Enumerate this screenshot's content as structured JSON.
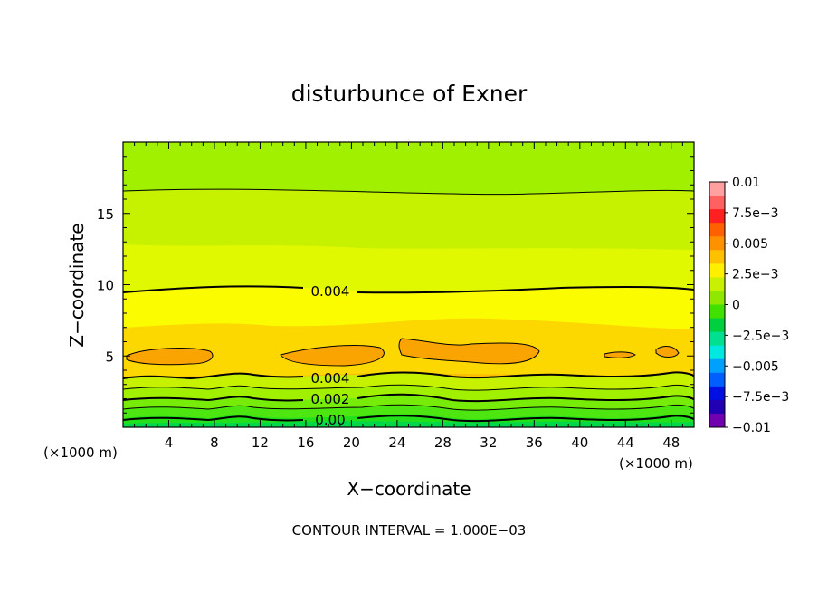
{
  "chart_data": {
    "type": "contour",
    "title": "disturbunce of Exner",
    "xlabel": "X−coordinate",
    "ylabel": "Z−coordinate",
    "x_unit_label": "(×1000 m)",
    "y_unit_label": "(×1000 m)",
    "footer": "CONTOUR INTERVAL = 1.000E−03",
    "xlim": [
      0,
      50
    ],
    "ylim": [
      0,
      20
    ],
    "x_ticks": [
      4,
      8,
      12,
      16,
      20,
      24,
      28,
      32,
      36,
      40,
      44,
      48
    ],
    "y_ticks": [
      5,
      10,
      15
    ],
    "contour_labels": [
      {
        "text": "0.004",
        "x": 18,
        "z": 9.5
      },
      {
        "text": "0.004",
        "x": 18,
        "z": 3.5
      },
      {
        "text": "0.002",
        "x": 18,
        "z": 2.0
      },
      {
        "text": "0.00",
        "x": 18,
        "z": 0.6
      }
    ],
    "bands": [
      {
        "from": -0.001,
        "to": 0,
        "color": "#00d84a"
      },
      {
        "from": 0,
        "to": 0.0005,
        "color": "#22e01a"
      },
      {
        "from": 0.0005,
        "to": 0.001,
        "color": "#4ee610"
      },
      {
        "from": 0.001,
        "to": 0.0015,
        "color": "#76ec08"
      },
      {
        "from": 0.0015,
        "to": 0.002,
        "color": "#a0f000"
      },
      {
        "from": 0.002,
        "to": 0.0025,
        "color": "#c6f200"
      },
      {
        "from": 0.0025,
        "to": 0.003,
        "color": "#e0f800"
      },
      {
        "from": 0.003,
        "to": 0.0035,
        "color": "#fcfc00"
      },
      {
        "from": 0.0035,
        "to": 0.004,
        "color": "#fcd800"
      },
      {
        "from": 0.004,
        "to": 0.0045,
        "color": "#fbbe00"
      },
      {
        "from": 0.0045,
        "to": 0.005,
        "color": "#f9a400"
      }
    ],
    "colorbar": {
      "labels": [
        "0.01",
        "7.5e−3",
        "0.005",
        "2.5e−3",
        "0",
        "−2.5e−3",
        "−0.005",
        "−7.5e−3",
        "−0.01"
      ],
      "colors": [
        "#ff9f9f",
        "#ff6060",
        "#ff2020",
        "#ff6000",
        "#ff9000",
        "#ffc000",
        "#fff000",
        "#c8f000",
        "#90e800",
        "#40e000",
        "#00d040",
        "#00e090",
        "#00e8e0",
        "#00a0ff",
        "#0060ff",
        "#0010e0",
        "#2000b0",
        "#7000b0"
      ]
    }
  }
}
